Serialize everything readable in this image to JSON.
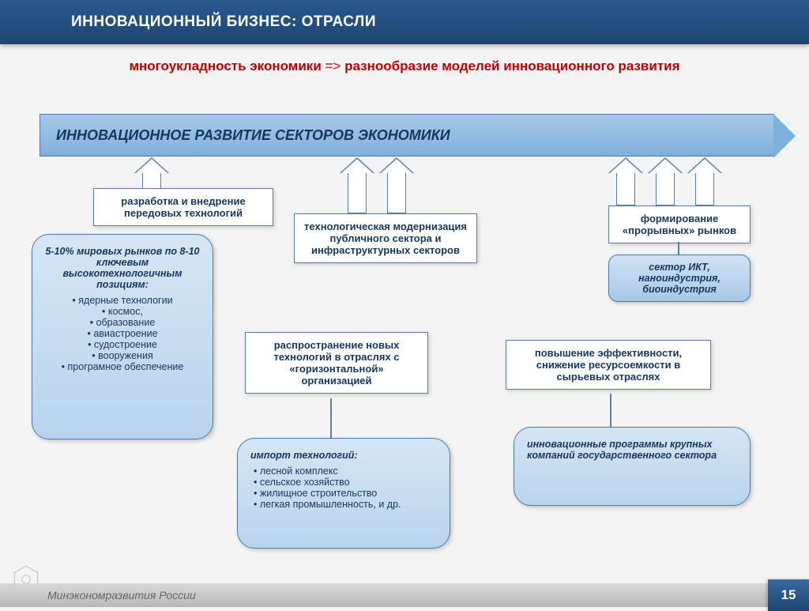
{
  "header": {
    "title": "ИННОВАЦИОННЫЙ БИЗНЕС: ОТРАСЛИ"
  },
  "subtitle": {
    "left": "многоукладность экономики",
    "arrow": "=>",
    "right": "разнообразие моделей инновационного развития"
  },
  "main_arrow": {
    "text": "ИННОВАЦИОННОЕ РАЗВИТИЕ СЕКТОРОВ ЭКОНОМИКИ"
  },
  "boxes": {
    "box1": "разработка и внедрение передовых технологий",
    "box2": "технологическая модернизация публичного сектора и инфраструктурных секторов",
    "box3": "формирование «прорывных» рынков",
    "box4": "распространение новых технологий в отраслях с «горизонтальной» организацией",
    "box5": "повышение эффективности, снижение ресурсоемкости в сырьевых отраслях"
  },
  "left_panel": {
    "heading": "5-10% мировых рынков по 8-10 ключевым высокотехнологичным позициям:",
    "items": [
      "ядерные технологии",
      "космос,",
      "образование",
      "авиастроение",
      "судостроение",
      "вооружения",
      "програмное обеспечение"
    ]
  },
  "ikt_panel": {
    "text": "сектор ИКТ, наноиндустрия, биоиндустрия"
  },
  "import_panel": {
    "heading": "импорт технологий:",
    "items": [
      "лесной комплекс",
      "сельское хозяйство",
      "жилищное строительство",
      "легкая промышленность, и др."
    ]
  },
  "gov_panel": {
    "text": "инновационные программы крупных компаний государственного сектора"
  },
  "footer": {
    "org": "Минэкономразвития России",
    "page": "15"
  },
  "colors": {
    "header_bg": "#1e4570",
    "accent_blue": "#7eb0dc",
    "border_blue": "#4a7ab0",
    "text_blue": "#17365d",
    "red": "#c00000"
  }
}
